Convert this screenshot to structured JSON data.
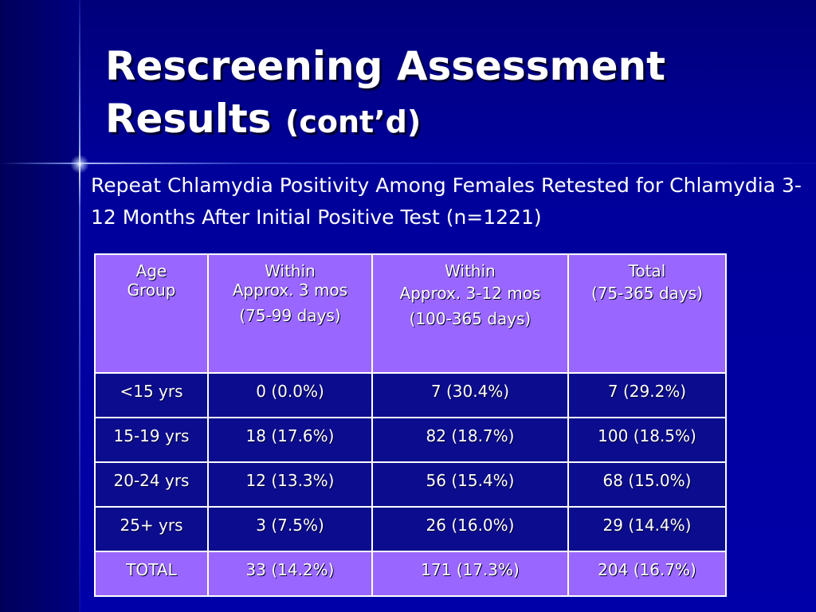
{
  "slide": {
    "title_main": "Rescreening Assessment Results",
    "title_suffix": "(cont’d)",
    "subtitle": "Repeat Chlamydia Positivity Among Females Retested for Chlamydia 3-12 Months After Initial Positive Test (n=1221)"
  },
  "table": {
    "headers": [
      {
        "line1": "Age",
        "line2": "Group",
        "line3": ""
      },
      {
        "line1": "Within",
        "line2": "Approx. 3 mos",
        "line3": "(75-99 days)"
      },
      {
        "line1": "Within",
        "line2": "Approx. 3-12 mos",
        "line3": "(100-365 days)"
      },
      {
        "line1": "Total",
        "line2": "(75-365 days)",
        "line3": ""
      }
    ],
    "rows": [
      [
        "<15 yrs",
        "0 (0.0%)",
        "7 (30.4%)",
        "7 (29.2%)"
      ],
      [
        "15-19 yrs",
        "18 (17.6%)",
        "82 (18.7%)",
        "100 (18.5%)"
      ],
      [
        "20-24 yrs",
        "12 (13.3%)",
        "56 (15.4%)",
        "68 (15.0%)"
      ],
      [
        "25+ yrs",
        "3 (7.5%)",
        "26 (16.0%)",
        "29 (14.4%)"
      ],
      [
        "TOTAL",
        "33 (14.2%)",
        "171 (17.3%)",
        "204 (16.7%)"
      ]
    ]
  },
  "colors": {
    "background": "#000099",
    "header_fill": "#9966ff",
    "row_fill": "#0c0c8e",
    "text": "#ffffff"
  }
}
